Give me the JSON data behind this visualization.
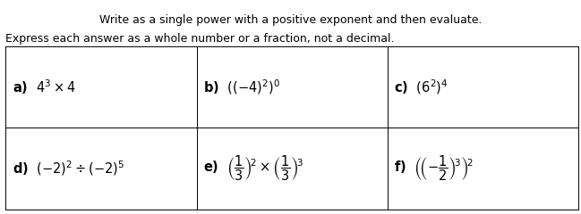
{
  "title1": "Write as a single power with a positive exponent and then evaluate.",
  "title2": "Express each answer as a whole number or a fraction, not a decimal.",
  "grid_color": "#000000",
  "bg_color": "#ffffff",
  "text_color": "#000000",
  "title1_fontsize": 9.0,
  "title2_fontsize": 9.0,
  "cell_fontsize": 10.5
}
